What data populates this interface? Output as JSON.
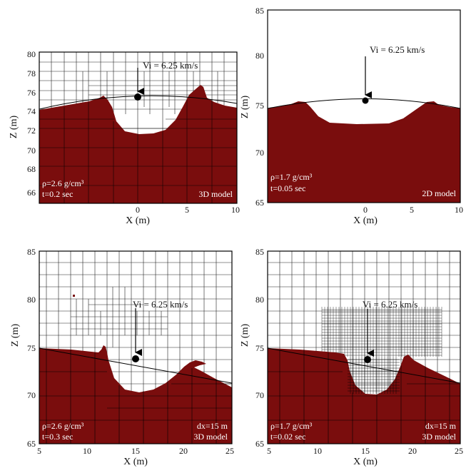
{
  "panels": [
    {
      "id": "a",
      "x_label": "X (m)",
      "y_label": "Z (m)",
      "xlim": [
        -10,
        10
      ],
      "ylim": [
        65,
        80
      ],
      "x_ticks": [
        "0",
        "5",
        "10"
      ],
      "y_ticks": [
        "66",
        "68",
        "70",
        "72",
        "74",
        "76",
        "78",
        "80"
      ],
      "impact_label": "Vi = 6.25 km/s",
      "density_label": "ρ=2.6 g/cm³",
      "time_label": "t=0.2 sec",
      "model_label": "3D model",
      "mesh_label": ""
    },
    {
      "id": "b",
      "x_label": "X (m)",
      "y_label": "Z (m)",
      "xlim": [
        -10,
        10
      ],
      "ylim": [
        65,
        85
      ],
      "x_ticks": [
        "0",
        "5",
        "10"
      ],
      "y_ticks": [
        "65",
        "70",
        "75",
        "80",
        "85"
      ],
      "impact_label": "Vi = 6.25 km/s",
      "density_label": "ρ=1.7 g/cm³",
      "time_label": "t=0.05 sec",
      "model_label": "2D model",
      "mesh_label": ""
    },
    {
      "id": "c",
      "x_label": "X (m)",
      "y_label": "Z (m)",
      "xlim": [
        5,
        25
      ],
      "ylim": [
        65,
        85
      ],
      "x_ticks": [
        "5",
        "10",
        "15",
        "20",
        "25"
      ],
      "y_ticks": [
        "65",
        "70",
        "75",
        "80",
        "85"
      ],
      "impact_label": "Vi = 6.25 km/s",
      "density_label": "ρ=2.6 g/cm³",
      "time_label": "t=0.3 sec",
      "model_label": "3D model",
      "mesh_label": "dx=15 m"
    },
    {
      "id": "d",
      "x_label": "X (m)",
      "y_label": "Z (m)",
      "xlim": [
        5,
        25
      ],
      "ylim": [
        65,
        85
      ],
      "x_ticks": [
        "5",
        "10",
        "15",
        "20",
        "25"
      ],
      "y_ticks": [
        "65",
        "70",
        "75",
        "80",
        "85"
      ],
      "impact_label": "Vi = 6.25 km/s",
      "density_label": "ρ=1.7 g/cm³",
      "time_label": "t=0.02 sec",
      "model_label": "3D model",
      "mesh_label": "dx=15 m"
    }
  ],
  "colors": {
    "material": "#7a0d0d",
    "grid": "#222222",
    "axis": "#000000"
  }
}
